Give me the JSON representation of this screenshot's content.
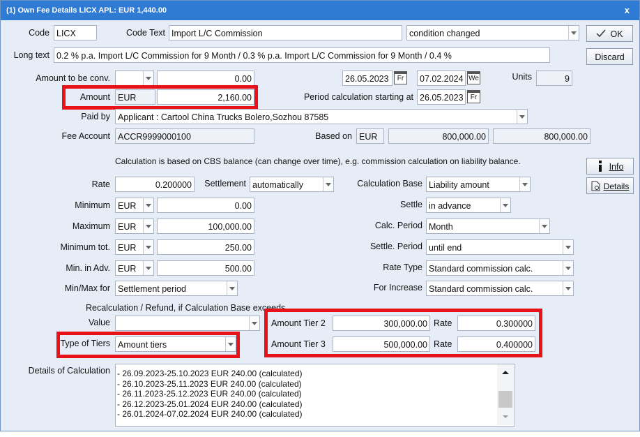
{
  "window": {
    "title": "(1) Own Fee Details LICX APL: EUR 1,440.00",
    "close": "x"
  },
  "buttons": {
    "ok": "OK",
    "discard": "Discard",
    "info": "Info",
    "details": "Details"
  },
  "code": {
    "label": "Code",
    "value": "LICX"
  },
  "code_text": {
    "label": "Code Text",
    "value": "Import L/C Commission",
    "status": "condition changed"
  },
  "long_text": {
    "label": "Long text",
    "value": "0.2 % p.a. Import L/C Commission for 9 Month / 0.3 % p.a. Import L/C Commission for 9 Month / 0.4 %"
  },
  "amount_to_conv": {
    "label": "Amount to be conv.",
    "value": "0.00",
    "date_from": "26.05.2023",
    "day_from": "Fr",
    "date_to": "07.02.2024",
    "day_to": "We",
    "units_label": "Units",
    "units": "9"
  },
  "amount": {
    "label": "Amount",
    "currency": "EUR",
    "value": "2,160.00"
  },
  "period_start": {
    "label": "Period calculation starting at",
    "date": "26.05.2023",
    "day": "Fr"
  },
  "paid_by": {
    "label": "Paid by",
    "value": "Applicant : Cartool China Trucks Bolero,Sozhou 87585"
  },
  "fee_account": {
    "label": "Fee Account",
    "value": "ACCR9999000100"
  },
  "based_on": {
    "label": "Based on",
    "currency": "EUR",
    "value": "800,000.00",
    "value2": "800,000.00"
  },
  "note": "Calculation is based on CBS balance (can change over time), e.g. commission calculation on liability balance.",
  "rate": {
    "label": "Rate",
    "value": "0.200000"
  },
  "settlement": {
    "label": "Settlement",
    "value": "automatically"
  },
  "calc_base": {
    "label": "Calculation Base",
    "value": "Liability amount"
  },
  "minimum": {
    "label": "Minimum",
    "currency": "EUR",
    "value": "0.00"
  },
  "settle": {
    "label": "Settle",
    "value": "in advance"
  },
  "maximum": {
    "label": "Maximum",
    "currency": "EUR",
    "value": "100,000.00"
  },
  "calc_period": {
    "label": "Calc. Period",
    "value": "Month"
  },
  "minimum_tot": {
    "label": "Minimum tot.",
    "currency": "EUR",
    "value": "250.00"
  },
  "settle_period": {
    "label": "Settle. Period",
    "value": "until end"
  },
  "min_in_adv": {
    "label": "Min. in Adv.",
    "currency": "EUR",
    "value": "500.00"
  },
  "rate_type": {
    "label": "Rate Type",
    "value": "Standard commission calc."
  },
  "min_max_for": {
    "label": "Min/Max for",
    "value": "Settlement period"
  },
  "for_increase": {
    "label": "For Increase",
    "value": "Standard commission calc."
  },
  "recalc": "Recalculation / Refund, if Calculation Base exceeds",
  "value_field": {
    "label": "Value",
    "value": ""
  },
  "type_of_tiers": {
    "label": "Type of Tiers",
    "value": "Amount tiers"
  },
  "tier2": {
    "label": "Amount Tier 2",
    "amount": "300,000.00",
    "rate_label": "Rate",
    "rate": "0.300000"
  },
  "tier3": {
    "label": "Amount Tier 3",
    "amount": "500,000.00",
    "rate_label": "Rate",
    "rate": "0.400000"
  },
  "details": {
    "label": "Details of Calculation",
    "lines": [
      "- 26.09.2023-25.10.2023 EUR 240.00 (calculated)",
      "- 26.10.2023-25.11.2023 EUR 240.00 (calculated)",
      "- 26.11.2023-25.12.2023 EUR 240.00 (calculated)",
      "- 26.12.2023-25.01.2024 EUR 240.00 (calculated)",
      "- 26.01.2024-07.02.2024 EUR 240.00 (calculated)"
    ]
  }
}
